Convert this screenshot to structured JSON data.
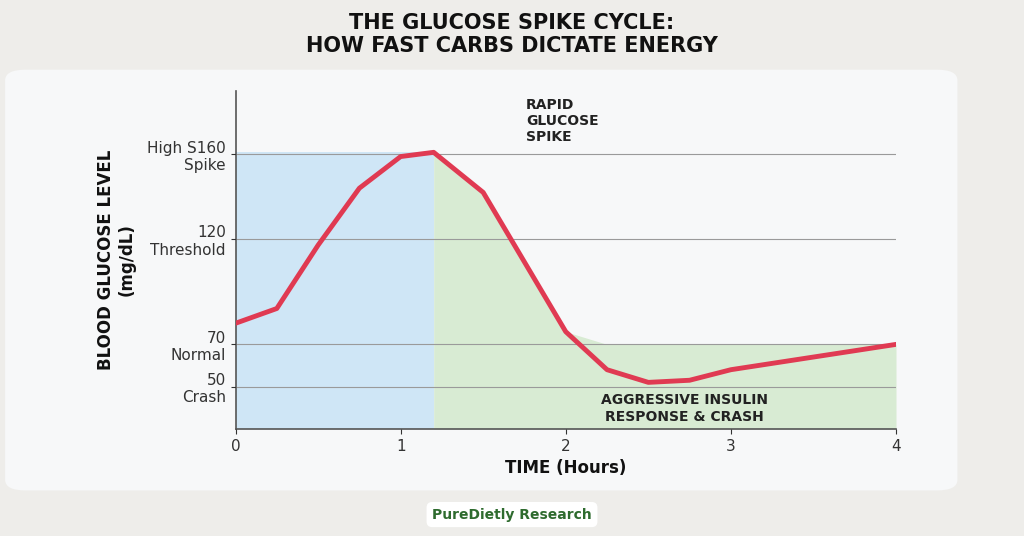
{
  "chart_data": {
    "type": "line",
    "title": "THE GLUCOSE SPIKE CYCLE:\nHOW FAST CARBS DICTATE ENERGY",
    "x_label": "TIME (Hours)",
    "y_label": "BLOOD GLUCOSE LEVEL\n(mg/dL)",
    "annotations": [
      "RAPID\nGLUCOSE\nSPIKE",
      "AGGRESSIVE INSULIN\nRESPONSE & CRASH"
    ],
    "source": "PureDietly Research",
    "x": [
      0,
      0.25,
      0.5,
      0.75,
      1.0,
      1.2,
      1.5,
      1.75,
      2.0,
      2.25,
      2.5,
      2.75,
      3.0,
      3.5,
      4.0
    ],
    "values": [
      80,
      87,
      117,
      144,
      159,
      161,
      142,
      109,
      76,
      58,
      52,
      53,
      58,
      64,
      70
    ],
    "color": "#e03a52",
    "xlim": [
      0,
      4
    ],
    "xticks": [
      0,
      1,
      2,
      3,
      4
    ],
    "ylim": [
      30,
      190
    ],
    "yticks": [
      {
        "value": 50,
        "label": "50\nCrash"
      },
      {
        "value": 70,
        "label": "70\nNormal"
      },
      {
        "value": 120,
        "label": "120\nThreshold"
      },
      {
        "value": 160,
        "label": "High S160\nSpike"
      }
    ],
    "grid": true
  }
}
